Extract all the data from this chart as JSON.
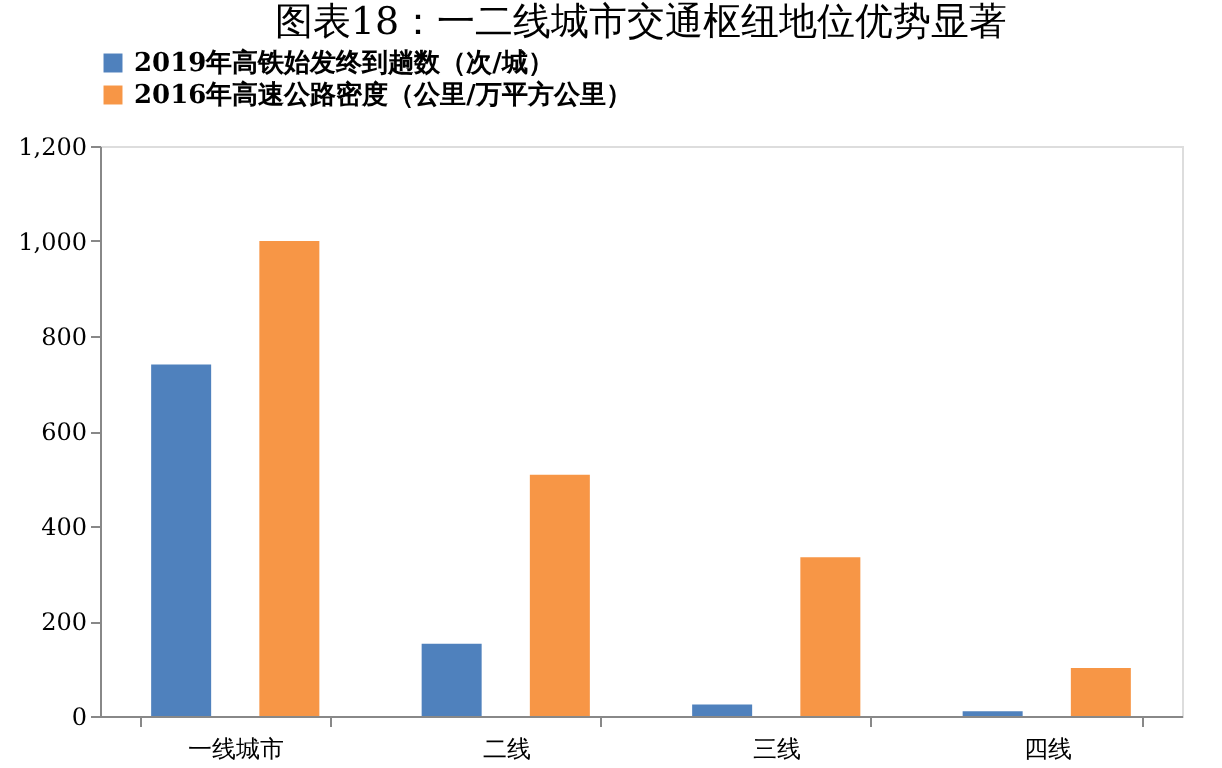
{
  "chart_data": {
    "type": "bar",
    "title": "图表18：一二线城市交通枢纽地位优势显著",
    "categories": [
      "一线城市",
      "二线",
      "三线",
      "四线"
    ],
    "series": [
      {
        "name": "2019年高铁始发终到趟数（次/城）",
        "color": "#4f81bd",
        "values": [
          740,
          152,
          24,
          10
        ]
      },
      {
        "name": "2016年高速公路密度（公里/万平方公里）",
        "color": "#f79646",
        "values": [
          1000,
          508,
          334,
          101
        ]
      }
    ],
    "ylim": [
      0,
      1200
    ],
    "yticks": [
      {
        "value": 0,
        "label": "0"
      },
      {
        "value": 200,
        "label": "200"
      },
      {
        "value": 400,
        "label": "400"
      },
      {
        "value": 600,
        "label": "600"
      },
      {
        "value": 800,
        "label": "800"
      },
      {
        "value": 1000,
        "label": "1,000"
      },
      {
        "value": 1200,
        "label": "1,200"
      }
    ],
    "grid": false,
    "legend": "top"
  }
}
